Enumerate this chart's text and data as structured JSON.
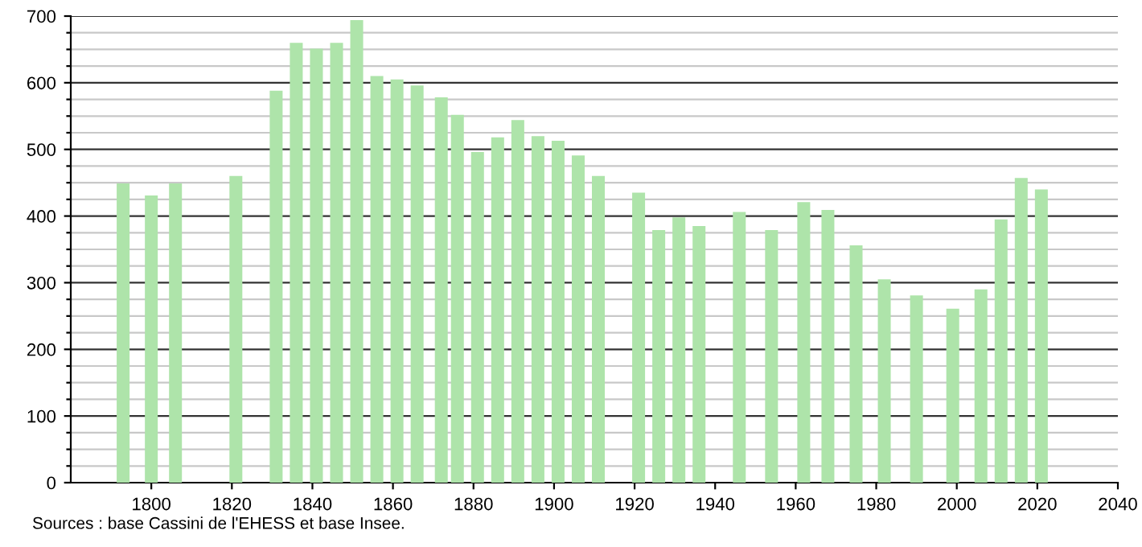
{
  "chart_data": {
    "type": "bar",
    "x": [
      1793,
      1800,
      1806,
      1821,
      1831,
      1836,
      1841,
      1846,
      1851,
      1856,
      1861,
      1866,
      1872,
      1876,
      1881,
      1886,
      1891,
      1896,
      1901,
      1906,
      1911,
      1921,
      1926,
      1931,
      1936,
      1946,
      1954,
      1962,
      1968,
      1975,
      1982,
      1990,
      1999,
      2006,
      2011,
      2016,
      2021
    ],
    "values": [
      449,
      431,
      449,
      460,
      588,
      660,
      651,
      660,
      694,
      610,
      605,
      596,
      578,
      552,
      496,
      518,
      544,
      520,
      513,
      491,
      460,
      435,
      379,
      398,
      385,
      406,
      379,
      421,
      409,
      356,
      305,
      281,
      261,
      290,
      395,
      457,
      440
    ],
    "color": "#aee4aa",
    "xlim": [
      1780,
      2040
    ],
    "xticks": [
      1800,
      1820,
      1840,
      1860,
      1880,
      1900,
      1920,
      1940,
      1960,
      1980,
      2000,
      2020,
      2040
    ],
    "ylim": [
      0,
      700
    ],
    "yticks": [
      0,
      {
        "value": 25,
        "label": null
      },
      {
        "value": 50,
        "label": null
      },
      {
        "value": 75,
        "label": null
      },
      100,
      {
        "value": 125,
        "label": null
      },
      {
        "value": 150,
        "label": null
      },
      {
        "value": 175,
        "label": null
      },
      200,
      {
        "value": 225,
        "label": null
      },
      {
        "value": 250,
        "label": null
      },
      {
        "value": 275,
        "label": null
      },
      300,
      {
        "value": 325,
        "label": null
      },
      {
        "value": 350,
        "label": null
      },
      {
        "value": 375,
        "label": null
      },
      400,
      {
        "value": 425,
        "label": null
      },
      {
        "value": 450,
        "label": null
      },
      {
        "value": 475,
        "label": null
      },
      500,
      {
        "value": 525,
        "label": null
      },
      {
        "value": 550,
        "label": null
      },
      {
        "value": 575,
        "label": null
      },
      600,
      {
        "value": 625,
        "label": null
      },
      {
        "value": 650,
        "label": null
      },
      {
        "value": 675,
        "label": null
      },
      700
    ],
    "grid": "y",
    "annotations": [
      "Sources : base Cassini de l'EHESS et base Insee."
    ]
  }
}
